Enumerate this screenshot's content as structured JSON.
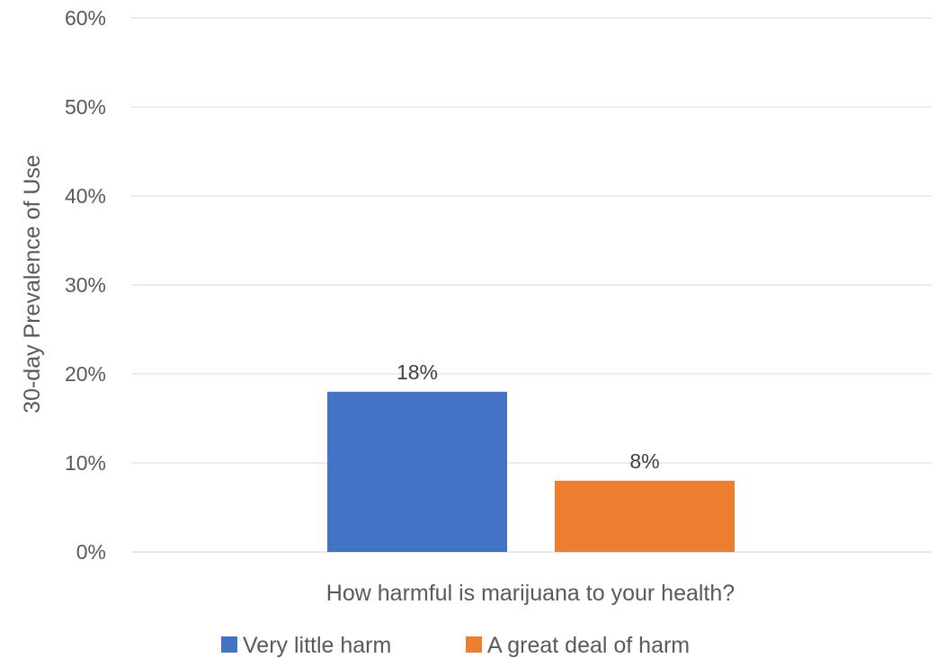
{
  "chart_data": {
    "type": "bar",
    "categories": [
      "How harmful is marijuana to your health?"
    ],
    "series": [
      {
        "name": "Very little harm",
        "values": [
          18
        ],
        "color": "#4472c4"
      },
      {
        "name": "A great deal of harm",
        "values": [
          8
        ],
        "color": "#ed7d31"
      }
    ],
    "data_labels": [
      "18%",
      "8%"
    ],
    "title": "",
    "xlabel": "How harmful is marijuana to your health?",
    "ylabel": "30-day Prevalence of Use",
    "ylim": [
      0,
      60
    ],
    "yticks": [
      0,
      10,
      20,
      30,
      40,
      50,
      60
    ],
    "ytick_labels": [
      "0%",
      "10%",
      "20%",
      "30%",
      "40%",
      "50%",
      "60%"
    ],
    "grid": true,
    "legend_position": "bottom"
  }
}
